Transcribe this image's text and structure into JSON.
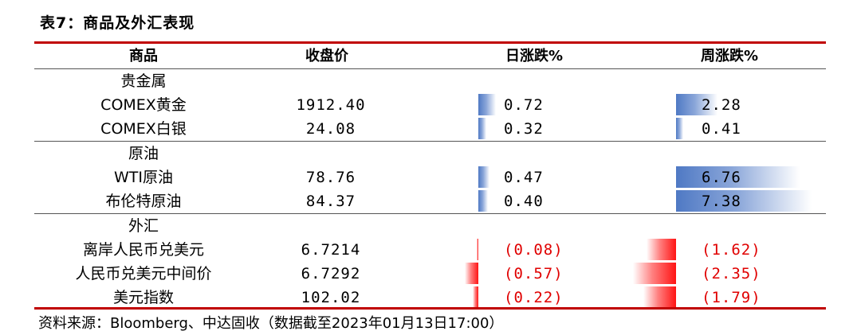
{
  "title": "表7：商品及外汇表现",
  "headers": {
    "commodity": "商品",
    "close": "收盘价",
    "daily": "日涨跌%",
    "weekly": "周涨跌%"
  },
  "groups": [
    {
      "name": "贵金属",
      "rows": [
        {
          "name": "COMEX黄金",
          "close": "1912.40",
          "daily": "0.72",
          "daily_value": 0.72,
          "weekly": "2.28",
          "weekly_value": 2.28
        },
        {
          "name": "COMEX白银",
          "close": "24.08",
          "daily": "0.32",
          "daily_value": 0.32,
          "weekly": "0.41",
          "weekly_value": 0.41
        }
      ]
    },
    {
      "name": "原油",
      "rows": [
        {
          "name": "WTI原油",
          "close": "78.76",
          "daily": "0.47",
          "daily_value": 0.47,
          "weekly": "6.76",
          "weekly_value": 6.76
        },
        {
          "name": "布伦特原油",
          "close": "84.37",
          "daily": "0.40",
          "daily_value": 0.4,
          "weekly": "7.38",
          "weekly_value": 7.38
        }
      ]
    },
    {
      "name": "外汇",
      "rows": [
        {
          "name": "离岸人民币兑美元",
          "close": "6.7214",
          "daily": "(0.08)",
          "daily_value": -0.08,
          "weekly": "(1.62)",
          "weekly_value": -1.62
        },
        {
          "name": "人民币兑美元中间价",
          "close": "6.7292",
          "daily": "(0.57)",
          "daily_value": -0.57,
          "weekly": "(2.35)",
          "weekly_value": -2.35
        },
        {
          "name": "美元指数",
          "close": "102.02",
          "daily": "(0.22)",
          "daily_value": -0.22,
          "weekly": "(1.79)",
          "weekly_value": -1.79
        }
      ]
    }
  ],
  "source": "资料来源：Bloomberg、中达固收（数据截至2023年01月13日17:00）",
  "colors": {
    "rule": "#c00000",
    "positive_bar": "#4f79c4",
    "negative_bar": "#ff1414",
    "negative_text": "#e00000"
  }
}
